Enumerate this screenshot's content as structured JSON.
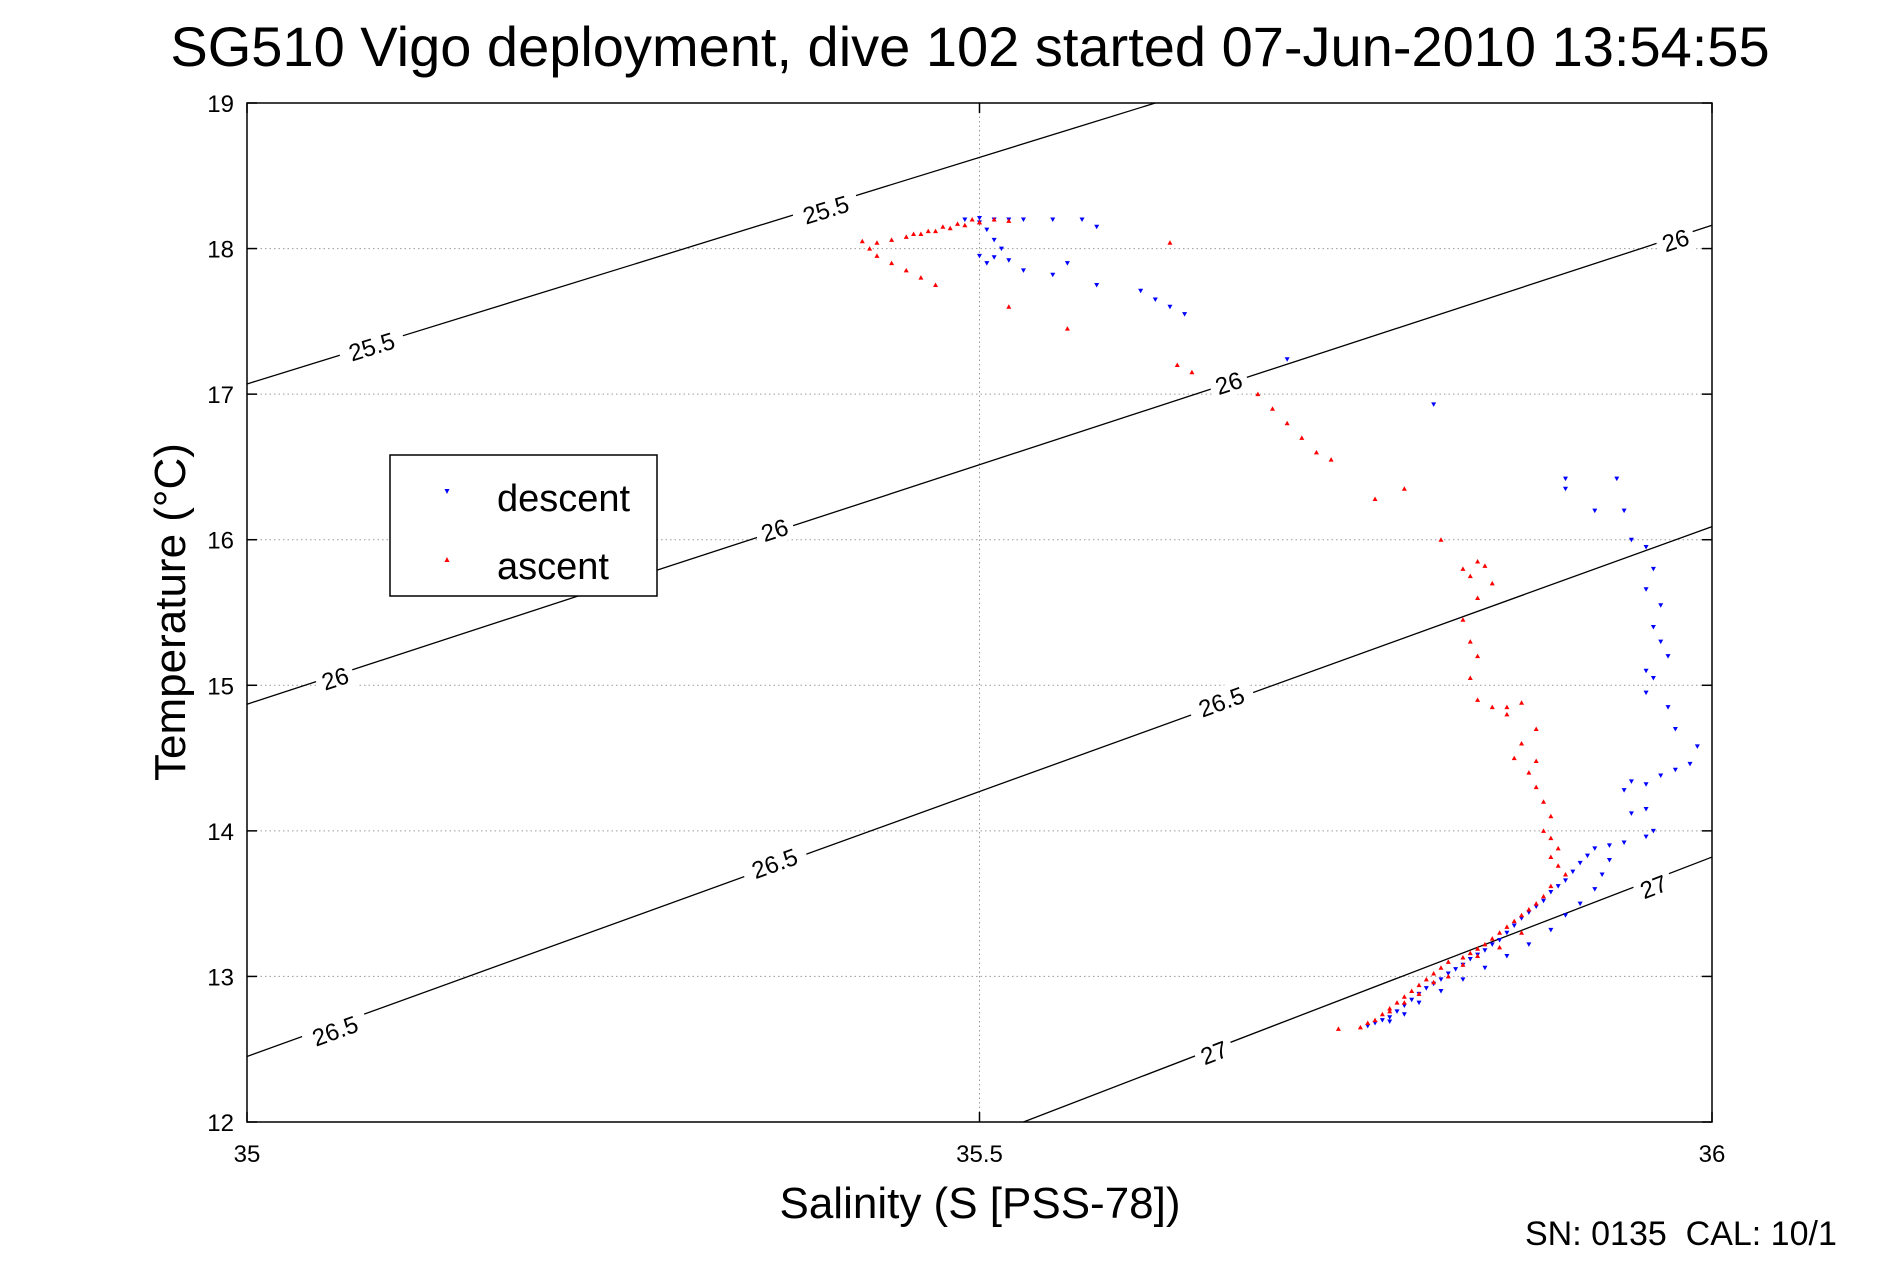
{
  "chart_data": {
    "type": "scatter",
    "title": "SG510 Vigo deployment, dive 102 started 07-Jun-2010 13:54:55",
    "xlabel": "Salinity (S [PSS-78])",
    "ylabel": "Temperature (°C)",
    "xlim": [
      35,
      36
    ],
    "ylim": [
      12,
      19
    ],
    "xticks": [
      35,
      35.5,
      36
    ],
    "xtick_labels": [
      "35",
      "35.5",
      "36"
    ],
    "yticks": [
      12,
      13,
      14,
      15,
      16,
      17,
      18,
      19
    ],
    "ytick_labels": [
      "12",
      "13",
      "14",
      "15",
      "16",
      "17",
      "18",
      "19"
    ],
    "grid": true,
    "legend_position": "left-middle",
    "footer": "SN: 0135  CAL: 10/1",
    "contours": [
      {
        "label": "25.5",
        "points": [
          [
            35.0,
            17.07
          ],
          [
            35.62,
            19.0
          ]
        ],
        "label_at": [
          [
            35.085,
            17.33
          ],
          [
            35.395,
            18.27
          ]
        ]
      },
      {
        "label": "26",
        "points": [
          [
            35.0,
            14.87
          ],
          [
            36.0,
            18.16
          ]
        ],
        "label_at": [
          [
            35.06,
            15.05
          ],
          [
            35.36,
            16.07
          ],
          [
            35.67,
            17.08
          ],
          [
            35.975,
            18.06
          ]
        ]
      },
      {
        "label": "26.5",
        "points": [
          [
            35.0,
            12.45
          ],
          [
            36.0,
            16.09
          ]
        ],
        "label_at": [
          [
            35.06,
            12.63
          ],
          [
            35.36,
            13.78
          ],
          [
            35.665,
            14.89
          ]
        ]
      },
      {
        "label": "27",
        "points": [
          [
            35.53,
            12.0
          ],
          [
            36.0,
            13.82
          ]
        ],
        "label_at": [
          [
            35.66,
            12.48
          ],
          [
            35.96,
            13.62
          ]
        ]
      }
    ],
    "series": [
      {
        "name": "descent",
        "color": "#0000ff",
        "marker": "triangle-down",
        "points": [
          [
            35.49,
            18.2
          ],
          [
            35.5,
            18.21
          ],
          [
            35.51,
            18.2
          ],
          [
            35.52,
            18.2
          ],
          [
            35.53,
            18.2
          ],
          [
            35.55,
            18.2
          ],
          [
            35.5,
            18.18
          ],
          [
            35.505,
            18.13
          ],
          [
            35.51,
            18.06
          ],
          [
            35.515,
            18.0
          ],
          [
            35.51,
            17.94
          ],
          [
            35.505,
            17.9
          ],
          [
            35.52,
            17.92
          ],
          [
            35.5,
            17.95
          ],
          [
            35.57,
            18.2
          ],
          [
            35.58,
            18.15
          ],
          [
            35.56,
            17.9
          ],
          [
            35.53,
            17.85
          ],
          [
            35.55,
            17.82
          ],
          [
            35.58,
            17.75
          ],
          [
            35.61,
            17.71
          ],
          [
            35.62,
            17.65
          ],
          [
            35.63,
            17.6
          ],
          [
            35.64,
            17.55
          ],
          [
            35.71,
            17.24
          ],
          [
            35.81,
            16.93
          ],
          [
            35.9,
            16.42
          ],
          [
            35.92,
            16.2
          ],
          [
            35.9,
            16.35
          ],
          [
            35.935,
            16.42
          ],
          [
            35.94,
            16.2
          ],
          [
            35.945,
            16.0
          ],
          [
            35.955,
            15.95
          ],
          [
            35.96,
            15.8
          ],
          [
            35.955,
            15.66
          ],
          [
            35.965,
            15.55
          ],
          [
            35.96,
            15.4
          ],
          [
            35.965,
            15.3
          ],
          [
            35.97,
            15.2
          ],
          [
            35.955,
            15.1
          ],
          [
            35.96,
            15.05
          ],
          [
            35.955,
            14.95
          ],
          [
            35.97,
            14.85
          ],
          [
            35.975,
            14.7
          ],
          [
            35.99,
            14.58
          ],
          [
            35.985,
            14.46
          ],
          [
            35.975,
            14.42
          ],
          [
            35.965,
            14.38
          ],
          [
            35.955,
            14.32
          ],
          [
            35.945,
            14.34
          ],
          [
            35.94,
            14.28
          ],
          [
            35.945,
            14.12
          ],
          [
            35.955,
            14.15
          ],
          [
            35.96,
            14.0
          ],
          [
            35.955,
            13.96
          ],
          [
            35.94,
            13.92
          ],
          [
            35.93,
            13.9
          ],
          [
            35.92,
            13.88
          ],
          [
            35.915,
            13.83
          ],
          [
            35.91,
            13.78
          ],
          [
            35.905,
            13.72
          ],
          [
            35.9,
            13.66
          ],
          [
            35.895,
            13.62
          ],
          [
            35.89,
            13.58
          ],
          [
            35.885,
            13.52
          ],
          [
            35.88,
            13.48
          ],
          [
            35.875,
            13.44
          ],
          [
            35.87,
            13.4
          ],
          [
            35.865,
            13.35
          ],
          [
            35.86,
            13.3
          ],
          [
            35.855,
            13.25
          ],
          [
            35.85,
            13.22
          ],
          [
            35.845,
            13.18
          ],
          [
            35.84,
            13.15
          ],
          [
            35.835,
            13.12
          ],
          [
            35.83,
            13.08
          ],
          [
            35.825,
            13.05
          ],
          [
            35.82,
            13.02
          ],
          [
            35.815,
            12.98
          ],
          [
            35.81,
            12.95
          ],
          [
            35.805,
            12.92
          ],
          [
            35.8,
            12.88
          ],
          [
            35.795,
            12.84
          ],
          [
            35.79,
            12.8
          ],
          [
            35.785,
            12.76
          ],
          [
            35.78,
            12.72
          ],
          [
            35.775,
            12.7
          ],
          [
            35.77,
            12.68
          ],
          [
            35.765,
            12.66
          ],
          [
            35.78,
            12.69
          ],
          [
            35.79,
            12.74
          ],
          [
            35.8,
            12.82
          ],
          [
            35.815,
            12.9
          ],
          [
            35.83,
            12.98
          ],
          [
            35.845,
            13.06
          ],
          [
            35.86,
            13.14
          ],
          [
            35.875,
            13.22
          ],
          [
            35.89,
            13.32
          ],
          [
            35.9,
            13.42
          ],
          [
            35.91,
            13.5
          ],
          [
            35.92,
            13.6
          ],
          [
            35.925,
            13.7
          ],
          [
            35.93,
            13.8
          ]
        ]
      },
      {
        "name": "ascent",
        "color": "#ff0000",
        "marker": "triangle-up",
        "points": [
          [
            35.42,
            18.05
          ],
          [
            35.425,
            18.0
          ],
          [
            35.43,
            17.95
          ],
          [
            35.44,
            17.9
          ],
          [
            35.45,
            17.85
          ],
          [
            35.46,
            17.8
          ],
          [
            35.47,
            17.75
          ],
          [
            35.43,
            18.04
          ],
          [
            35.44,
            18.06
          ],
          [
            35.45,
            18.08
          ],
          [
            35.46,
            18.1
          ],
          [
            35.47,
            18.12
          ],
          [
            35.48,
            18.14
          ],
          [
            35.49,
            18.16
          ],
          [
            35.5,
            18.18
          ],
          [
            35.51,
            18.2
          ],
          [
            35.52,
            18.19
          ],
          [
            35.455,
            18.1
          ],
          [
            35.465,
            18.12
          ],
          [
            35.475,
            18.15
          ],
          [
            35.485,
            18.17
          ],
          [
            35.495,
            18.2
          ],
          [
            35.5,
            18.18
          ],
          [
            35.52,
            17.6
          ],
          [
            35.56,
            17.45
          ],
          [
            35.635,
            17.2
          ],
          [
            35.645,
            17.15
          ],
          [
            35.63,
            18.04
          ],
          [
            35.69,
            17.0
          ],
          [
            35.7,
            16.9
          ],
          [
            35.71,
            16.8
          ],
          [
            35.72,
            16.7
          ],
          [
            35.73,
            16.6
          ],
          [
            35.74,
            16.55
          ],
          [
            35.77,
            16.28
          ],
          [
            35.79,
            16.35
          ],
          [
            35.815,
            16.0
          ],
          [
            35.83,
            15.8
          ],
          [
            35.835,
            15.75
          ],
          [
            35.84,
            15.85
          ],
          [
            35.845,
            15.82
          ],
          [
            35.85,
            15.7
          ],
          [
            35.84,
            15.6
          ],
          [
            35.83,
            15.45
          ],
          [
            35.835,
            15.3
          ],
          [
            35.84,
            15.2
          ],
          [
            35.835,
            15.05
          ],
          [
            35.84,
            14.9
          ],
          [
            35.85,
            14.85
          ],
          [
            35.86,
            14.85
          ],
          [
            35.87,
            14.88
          ],
          [
            35.86,
            14.8
          ],
          [
            35.88,
            14.7
          ],
          [
            35.87,
            14.6
          ],
          [
            35.865,
            14.5
          ],
          [
            35.88,
            14.48
          ],
          [
            35.875,
            14.4
          ],
          [
            35.88,
            14.3
          ],
          [
            35.885,
            14.2
          ],
          [
            35.89,
            14.1
          ],
          [
            35.885,
            14.0
          ],
          [
            35.89,
            13.95
          ],
          [
            35.895,
            13.88
          ],
          [
            35.89,
            13.82
          ],
          [
            35.895,
            13.76
          ],
          [
            35.9,
            13.7
          ],
          [
            35.89,
            13.62
          ],
          [
            35.885,
            13.55
          ],
          [
            35.88,
            13.5
          ],
          [
            35.875,
            13.46
          ],
          [
            35.87,
            13.42
          ],
          [
            35.865,
            13.38
          ],
          [
            35.86,
            13.34
          ],
          [
            35.855,
            13.3
          ],
          [
            35.85,
            13.26
          ],
          [
            35.845,
            13.22
          ],
          [
            35.84,
            13.19
          ],
          [
            35.835,
            13.16
          ],
          [
            35.83,
            13.13
          ],
          [
            35.82,
            13.1
          ],
          [
            35.815,
            13.06
          ],
          [
            35.81,
            13.02
          ],
          [
            35.805,
            12.98
          ],
          [
            35.8,
            12.94
          ],
          [
            35.795,
            12.9
          ],
          [
            35.79,
            12.86
          ],
          [
            35.785,
            12.82
          ],
          [
            35.78,
            12.78
          ],
          [
            35.775,
            12.74
          ],
          [
            35.77,
            12.7
          ],
          [
            35.765,
            12.68
          ],
          [
            35.76,
            12.65
          ],
          [
            35.745,
            12.64
          ],
          [
            35.78,
            12.76
          ],
          [
            35.79,
            12.82
          ],
          [
            35.8,
            12.88
          ],
          [
            35.81,
            12.96
          ],
          [
            35.82,
            13.0
          ],
          [
            35.83,
            13.08
          ],
          [
            35.84,
            13.14
          ],
          [
            35.855,
            13.2
          ],
          [
            35.87,
            13.3
          ]
        ]
      }
    ]
  }
}
